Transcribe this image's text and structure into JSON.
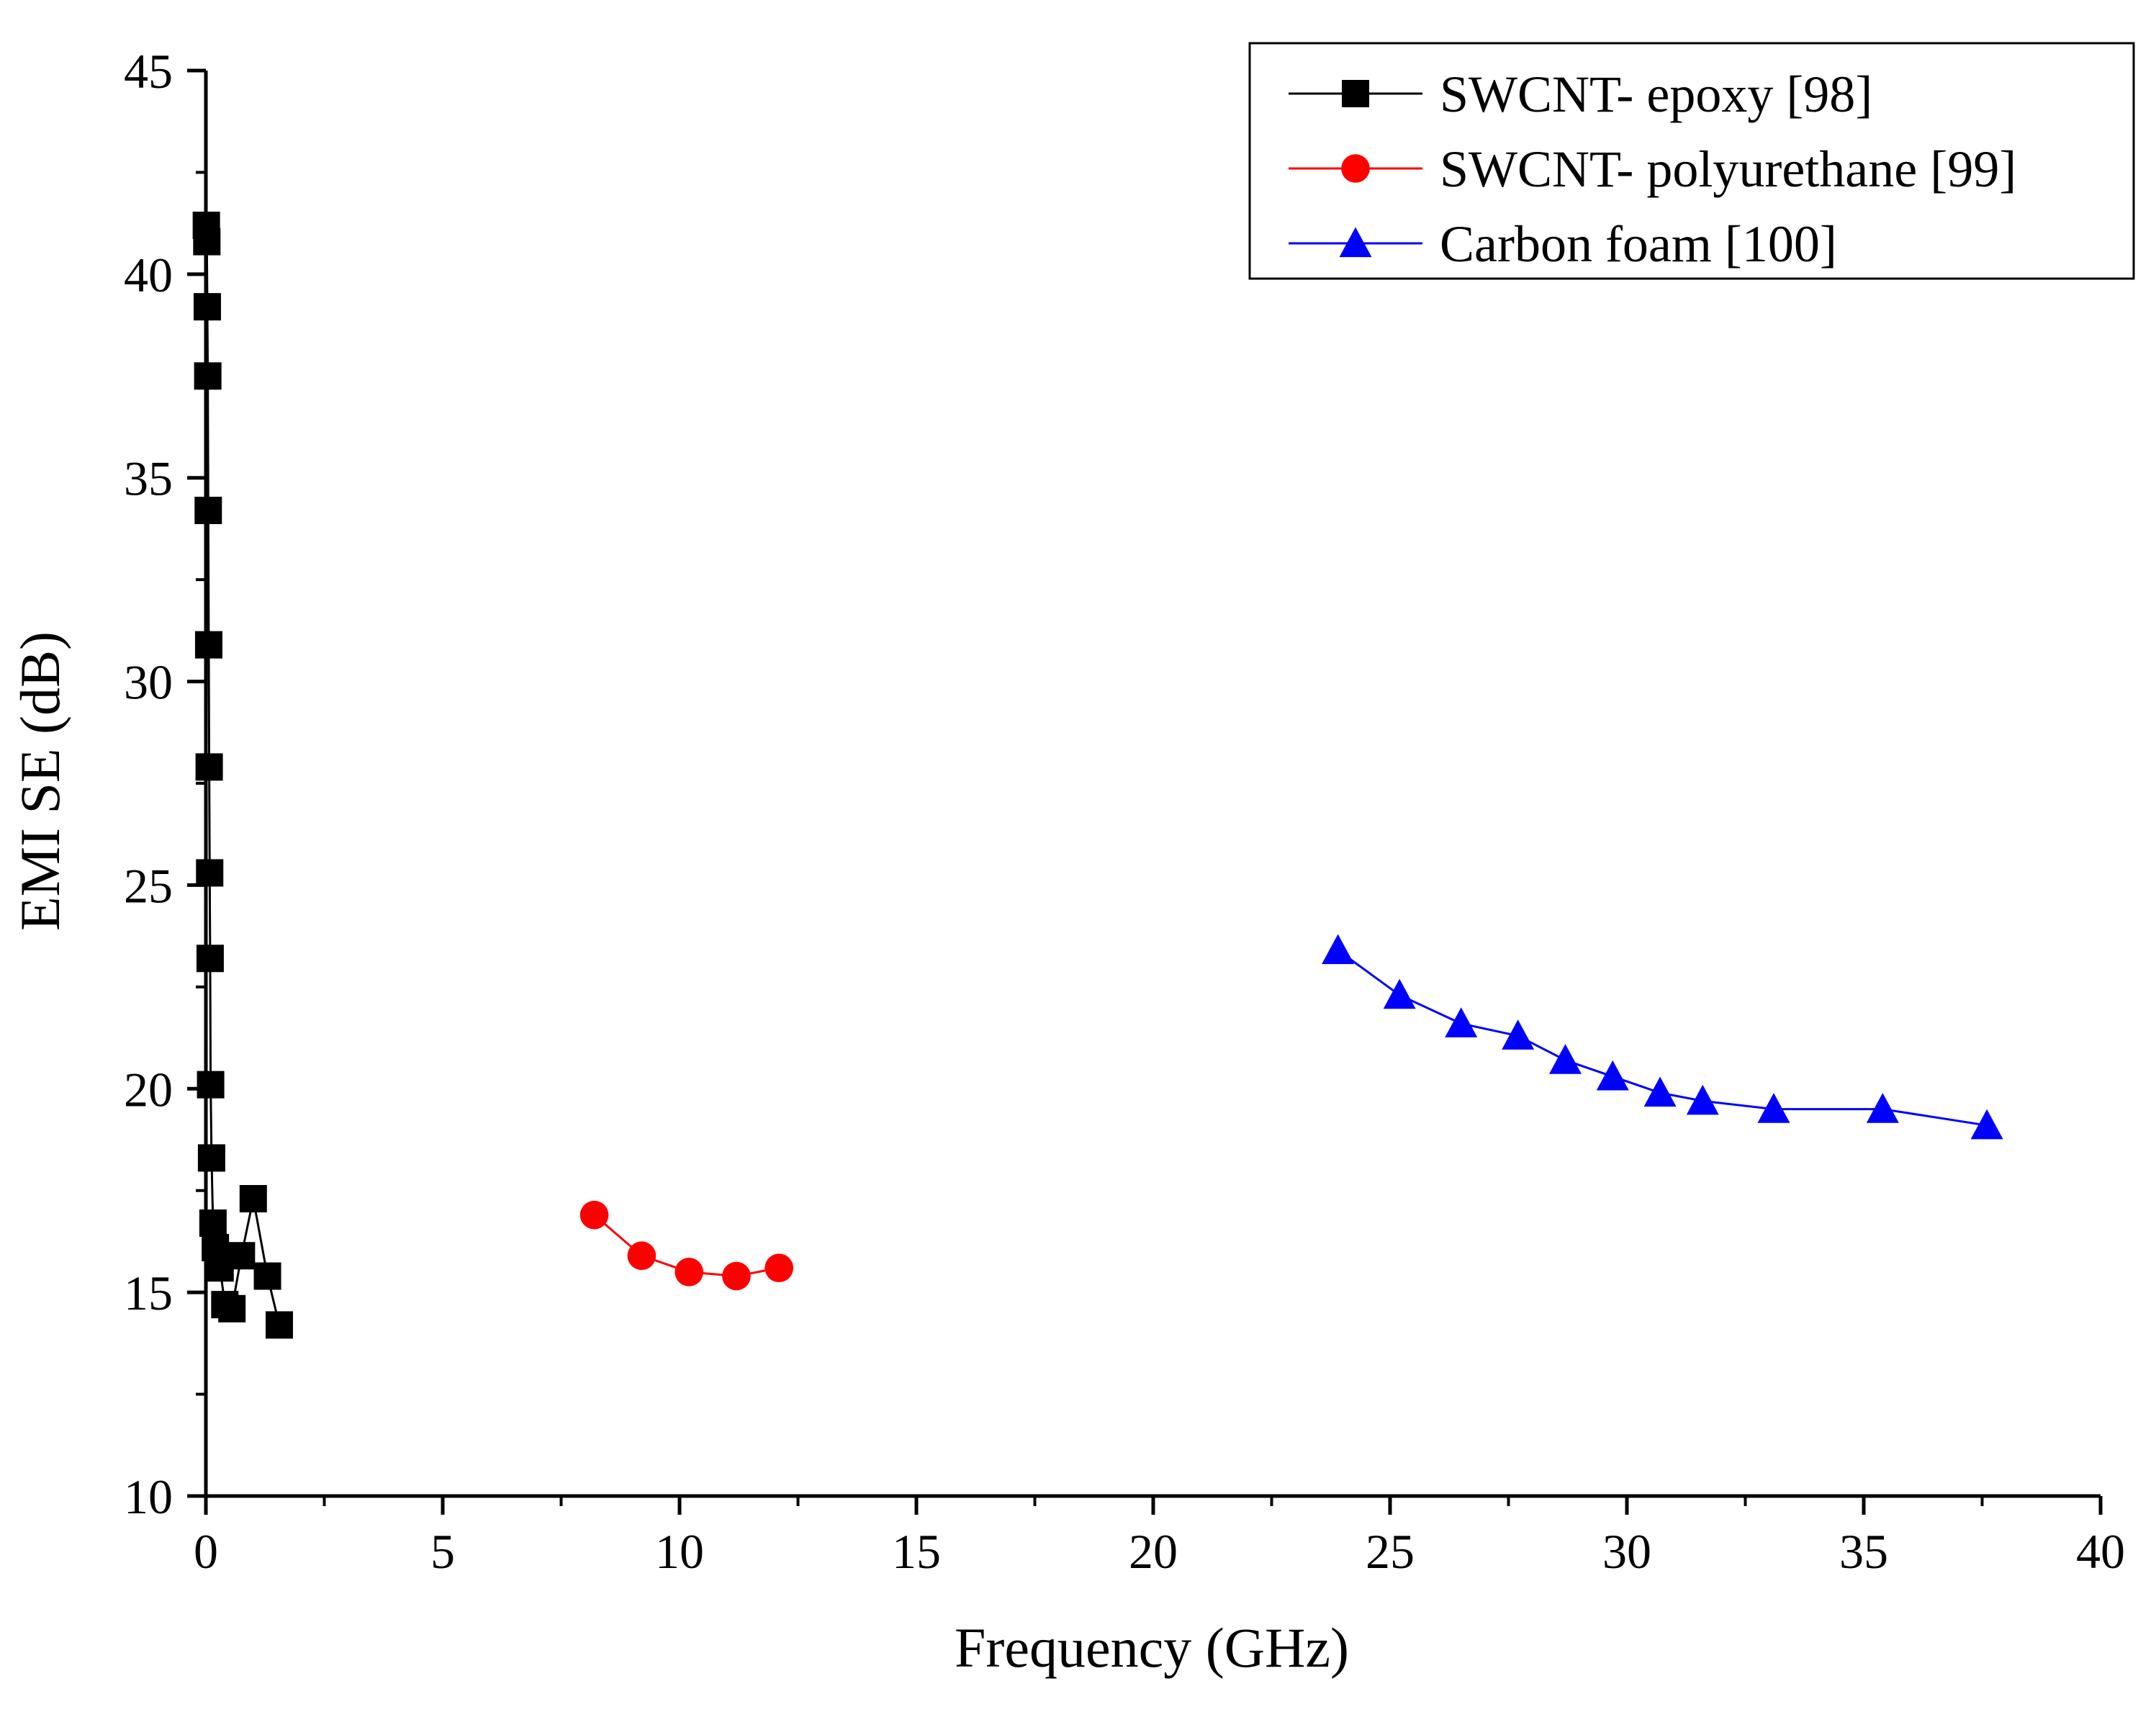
{
  "chart_data": {
    "type": "line",
    "title": "",
    "xlabel": "Frequency (GHz)",
    "ylabel": "EMI SE (dB)",
    "xlim": [
      0,
      40
    ],
    "ylim": [
      10,
      45
    ],
    "xticks": [
      "0",
      "5",
      "10",
      "15",
      "20",
      "25",
      "30",
      "35",
      "40"
    ],
    "yticks": [
      "10",
      "15",
      "20",
      "25",
      "30",
      "35",
      "40",
      "45"
    ],
    "grid": false,
    "legend_position": "top-right",
    "series": [
      {
        "name": "SWCNT- epoxy [98]",
        "color": "#000000",
        "marker": "square",
        "x": [
          0.01,
          0.02,
          0.03,
          0.04,
          0.05,
          0.06,
          0.07,
          0.08,
          0.09,
          0.1,
          0.12,
          0.15,
          0.2,
          0.3,
          0.4,
          0.55,
          0.75,
          1.0,
          1.3,
          1.55
        ],
        "y": [
          41.2,
          40.8,
          39.2,
          37.5,
          34.2,
          30.9,
          27.9,
          25.3,
          23.2,
          20.1,
          18.3,
          16.7,
          16.1,
          15.6,
          14.7,
          14.6,
          15.9,
          17.3,
          15.4,
          14.2
        ]
      },
      {
        "name": "SWCNT- polyurethane [99]",
        "color": "#ff0000",
        "marker": "circle",
        "x": [
          8.2,
          9.2,
          10.2,
          11.2,
          12.1
        ],
        "y": [
          16.9,
          15.9,
          15.5,
          15.4,
          15.6
        ]
      },
      {
        "name": "Carbon foam [100]",
        "color": "#0000ff",
        "marker": "triangle",
        "x": [
          23.9,
          25.2,
          26.5,
          27.7,
          28.7,
          29.7,
          30.7,
          31.6,
          33.1,
          35.4,
          37.6
        ],
        "y": [
          23.4,
          22.3,
          21.6,
          21.3,
          20.7,
          20.3,
          19.9,
          19.7,
          19.5,
          19.5,
          19.1
        ]
      }
    ]
  }
}
